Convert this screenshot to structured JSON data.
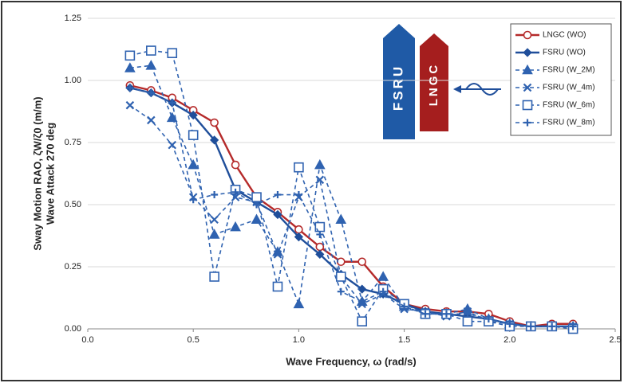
{
  "chart_data": {
    "type": "line",
    "xlabel": "Wave Frequency, ω (rad/s)",
    "ylabel": "Sway Motion RAO, ζW/ζ0 (m/m)",
    "ylabel2": "Wave Attack 270 deg",
    "annotations": [
      "FSRU",
      "LNGC"
    ],
    "x": [
      0.2,
      0.3,
      0.4,
      0.5,
      0.6,
      0.7,
      0.8,
      0.9,
      1.0,
      1.1,
      1.2,
      1.3,
      1.4,
      1.5,
      1.6,
      1.7,
      1.8,
      1.9,
      2.0,
      2.1,
      2.2,
      2.3
    ],
    "xlim": [
      0,
      2.5
    ],
    "xticks": [
      {
        "value": 0,
        "label": "0.0"
      },
      0.5,
      {
        "value": 1,
        "label": "1.0"
      },
      1.5,
      {
        "value": 2,
        "label": "2.0"
      },
      2.5
    ],
    "ylim": [
      0,
      1.25
    ],
    "yticks": [
      {
        "value": 0,
        "label": "0.00"
      },
      0.25,
      {
        "value": 0.5,
        "label": "0.50"
      },
      0.75,
      {
        "value": 1,
        "label": "1.00"
      },
      1.25
    ],
    "grid": true,
    "legend": "upper right",
    "series": [
      {
        "name": "LNGC (WO)",
        "color": "#b52a2a",
        "marker": "circle",
        "dash": false,
        "values": [
          0.98,
          0.96,
          0.93,
          0.88,
          0.83,
          0.66,
          0.53,
          0.47,
          0.4,
          0.33,
          0.27,
          0.27,
          0.17,
          0.1,
          0.08,
          0.07,
          0.07,
          0.06,
          0.03,
          0.01,
          0.02,
          0.02
        ]
      },
      {
        "name": "FSRU (WO)",
        "color": "#1f4e9a",
        "marker": "diamond",
        "dash": false,
        "values": [
          0.97,
          0.95,
          0.91,
          0.86,
          0.76,
          0.56,
          0.51,
          0.46,
          0.37,
          0.3,
          0.22,
          0.16,
          0.14,
          0.1,
          0.07,
          0.06,
          0.05,
          0.04,
          0.02,
          0.01,
          0.01,
          0.01
        ]
      },
      {
        "name": "FSRU (W_2M)",
        "color": "#2f62b0",
        "marker": "triangle",
        "dash": true,
        "values": [
          1.05,
          1.06,
          0.85,
          0.66,
          0.38,
          0.41,
          0.44,
          0.31,
          0.1,
          0.66,
          0.44,
          0.11,
          0.21,
          0.09,
          0.06,
          0.06,
          0.08,
          0.04,
          0.02,
          0.01,
          0.01,
          0.01
        ]
      },
      {
        "name": "FSRU (W_4m)",
        "color": "#2f62b0",
        "marker": "x",
        "dash": true,
        "values": [
          0.9,
          0.84,
          0.74,
          0.53,
          0.44,
          0.53,
          0.51,
          0.3,
          0.53,
          0.6,
          0.21,
          0.1,
          0.14,
          0.08,
          0.07,
          0.05,
          0.07,
          0.03,
          0.02,
          0.01,
          0.01,
          0.01
        ]
      },
      {
        "name": "FSRU (W_6m)",
        "color": "#2f62b0",
        "marker": "square",
        "dash": true,
        "values": [
          1.1,
          1.12,
          1.11,
          0.78,
          0.21,
          0.56,
          0.53,
          0.17,
          0.65,
          0.41,
          0.21,
          0.03,
          0.16,
          0.1,
          0.06,
          0.06,
          0.03,
          0.03,
          0.01,
          0.01,
          0.01,
          0.0
        ]
      },
      {
        "name": "FSRU (W_8m)",
        "color": "#2f62b0",
        "marker": "plus",
        "dash": true,
        "values": [
          0.97,
          0.95,
          0.91,
          0.52,
          0.54,
          0.55,
          0.5,
          0.54,
          0.54,
          0.38,
          0.15,
          0.11,
          0.15,
          0.09,
          0.06,
          0.06,
          0.06,
          0.04,
          0.02,
          0.01,
          0.01,
          0.01
        ]
      }
    ]
  }
}
